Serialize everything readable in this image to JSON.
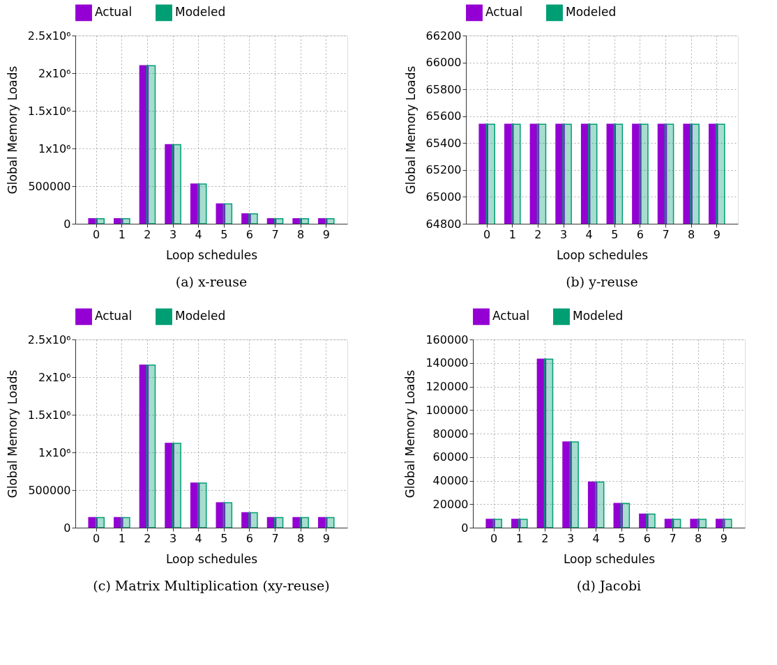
{
  "chart_data": [
    {
      "type": "bar",
      "title": "(a) x-reuse",
      "xlabel": "Loop schedules",
      "ylabel": "Global Memory Loads",
      "categories": [
        "0",
        "1",
        "2",
        "3",
        "4",
        "5",
        "6",
        "7",
        "8",
        "9"
      ],
      "series": [
        {
          "name": "Actual",
          "color": "#9400d3",
          "values": [
            66000,
            66000,
            2100000,
            1050000,
            527000,
            265000,
            133000,
            66000,
            66000,
            66000
          ]
        },
        {
          "name": "Modeled",
          "color": "#009e73",
          "values": [
            66000,
            66000,
            2100000,
            1050000,
            527000,
            265000,
            133000,
            66000,
            66000,
            66000
          ]
        }
      ],
      "ylim": [
        0,
        2500000
      ],
      "yticks": [
        0,
        500000,
        {
          "value": 1000000,
          "label": "1x10⁶"
        },
        {
          "value": 1500000,
          "label": "1.5x10⁶"
        },
        {
          "value": 2000000,
          "label": "2x10⁶"
        },
        {
          "value": 2500000,
          "label": "2.5x10⁶"
        }
      ],
      "grid": true,
      "legend": "top"
    },
    {
      "type": "bar",
      "title": "(b) y-reuse",
      "xlabel": "Loop schedules",
      "ylabel": "Global Memory Loads",
      "categories": [
        "0",
        "1",
        "2",
        "3",
        "4",
        "5",
        "6",
        "7",
        "8",
        "9"
      ],
      "series": [
        {
          "name": "Actual",
          "color": "#9400d3",
          "values": [
            65540,
            65540,
            65540,
            65540,
            65540,
            65540,
            65540,
            65540,
            65540,
            65540
          ]
        },
        {
          "name": "Modeled",
          "color": "#009e73",
          "values": [
            65540,
            65540,
            65540,
            65540,
            65540,
            65540,
            65540,
            65540,
            65540,
            65540
          ]
        }
      ],
      "ylim": [
        64800,
        66200
      ],
      "yticks": [
        64800,
        65000,
        65200,
        65400,
        65600,
        65800,
        66000,
        66200
      ],
      "grid": true,
      "legend": "top"
    },
    {
      "type": "bar",
      "title": "(c) Matrix Multiplication (xy-reuse)",
      "xlabel": "Loop schedules",
      "ylabel": "Global Memory Loads",
      "categories": [
        "0",
        "1",
        "2",
        "3",
        "4",
        "5",
        "6",
        "7",
        "8",
        "9"
      ],
      "series": [
        {
          "name": "Actual",
          "color": "#9400d3",
          "values": [
            135000,
            135000,
            2160000,
            1120000,
            593000,
            331000,
            199000,
            135000,
            135000,
            135000
          ]
        },
        {
          "name": "Modeled",
          "color": "#009e73",
          "values": [
            135000,
            135000,
            2160000,
            1120000,
            593000,
            331000,
            199000,
            135000,
            135000,
            135000
          ]
        }
      ],
      "ylim": [
        0,
        2500000
      ],
      "yticks": [
        0,
        500000,
        {
          "value": 1000000,
          "label": "1x10⁶"
        },
        {
          "value": 1500000,
          "label": "1.5x10⁶"
        },
        {
          "value": 2000000,
          "label": "2x10⁶"
        },
        {
          "value": 2500000,
          "label": "2.5x10⁶"
        }
      ],
      "grid": true,
      "legend": "top"
    },
    {
      "type": "bar",
      "title": "(d) Jacobi",
      "xlabel": "Loop schedules",
      "ylabel": "Global Memory Loads",
      "categories": [
        "0",
        "1",
        "2",
        "3",
        "4",
        "5",
        "6",
        "7",
        "8",
        "9"
      ],
      "series": [
        {
          "name": "Actual",
          "color": "#9400d3",
          "values": [
            7100,
            7100,
            143300,
            72900,
            38800,
            20600,
            11600,
            7100,
            7100,
            7100
          ]
        },
        {
          "name": "Modeled",
          "color": "#009e73",
          "values": [
            7100,
            7100,
            143300,
            72900,
            38800,
            20600,
            11600,
            7100,
            7100,
            7100
          ]
        }
      ],
      "ylim": [
        0,
        160000
      ],
      "yticks": [
        0,
        20000,
        40000,
        60000,
        80000,
        100000,
        120000,
        140000,
        160000
      ],
      "grid": true,
      "legend": "top"
    }
  ]
}
